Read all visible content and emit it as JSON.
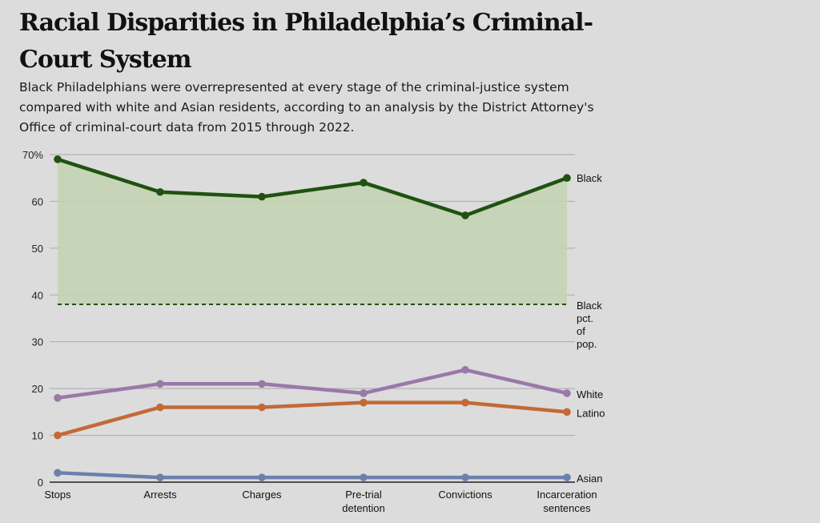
{
  "title": "Racial Disparities in Philadelphia’s Criminal-Court System",
  "subtitle": "Black Philadelphians were overrepresented at every stage of the criminal-justice system compared with white and Asian residents, according to an analysis by the District Attorney's Office of criminal-court data from 2015 through 2022.",
  "chart_data": {
    "type": "line",
    "categories": [
      "Stops",
      "Arrests",
      "Charges",
      "Pre-trial detention",
      "Convictions",
      "Incarceration sentences"
    ],
    "category_label_lines": [
      [
        "Stops"
      ],
      [
        "Arrests"
      ],
      [
        "Charges"
      ],
      [
        "Pre-trial",
        "detention"
      ],
      [
        "Convictions"
      ],
      [
        "Incarceration",
        "sentences"
      ]
    ],
    "ylim": [
      0,
      70
    ],
    "yticks": [
      0,
      10,
      20,
      30,
      40,
      50,
      60,
      70
    ],
    "ytick_labels": [
      "0",
      "10",
      "20",
      "30",
      "40",
      "50",
      "60",
      "70%"
    ],
    "grid": true,
    "series": [
      {
        "name": "Black",
        "values": [
          69,
          62,
          61,
          64,
          57,
          65
        ],
        "color": "#1f5210",
        "area_fill": "#c3d3b3"
      },
      {
        "name": "White",
        "values": [
          18,
          21,
          21,
          19,
          24,
          19
        ],
        "color": "#9a78a8"
      },
      {
        "name": "Latino",
        "values": [
          10,
          16,
          16,
          17,
          17,
          15
        ],
        "color": "#c26a37"
      },
      {
        "name": "Asian",
        "values": [
          2,
          1,
          1,
          1,
          1,
          1
        ],
        "color": "#6c80ad"
      }
    ],
    "reference_line": {
      "value": 38,
      "label_lines": [
        "Black",
        "pct.",
        "of",
        "pop."
      ],
      "color": "#1f5210",
      "style": "dashed"
    }
  }
}
